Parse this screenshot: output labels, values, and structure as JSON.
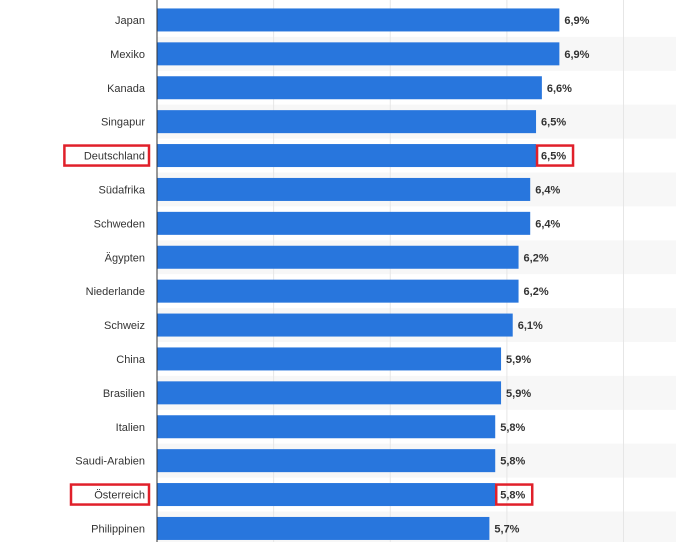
{
  "chart_data": {
    "type": "bar",
    "orientation": "horizontal",
    "categories": [
      "Japan",
      "Mexiko",
      "Kanada",
      "Singapur",
      "Deutschland",
      "Südafrika",
      "Schweden",
      "Ägypten",
      "Niederlande",
      "Schweiz",
      "China",
      "Brasilien",
      "Italien",
      "Saudi-Arabien",
      "Österreich",
      "Philippinen"
    ],
    "values": [
      6.9,
      6.9,
      6.6,
      6.5,
      6.5,
      6.4,
      6.4,
      6.2,
      6.2,
      6.1,
      5.9,
      5.9,
      5.8,
      5.8,
      5.8,
      5.7
    ],
    "value_labels": [
      "6,9%",
      "6,9%",
      "6,6%",
      "6,5%",
      "6,5%",
      "6,4%",
      "6,4%",
      "6,2%",
      "6,2%",
      "6,1%",
      "5,9%",
      "5,9%",
      "5,8%",
      "5,8%",
      "5,8%",
      "5,7%"
    ],
    "highlighted": [
      "Deutschland",
      "Österreich"
    ],
    "xlim": [
      0,
      8.9
    ],
    "grid": true,
    "colors": {
      "bar": "#2876dd",
      "highlight_box": "#e0202a",
      "grid": "#e6e6e6",
      "axis": "#333333",
      "band": "#f7f7f7"
    }
  }
}
